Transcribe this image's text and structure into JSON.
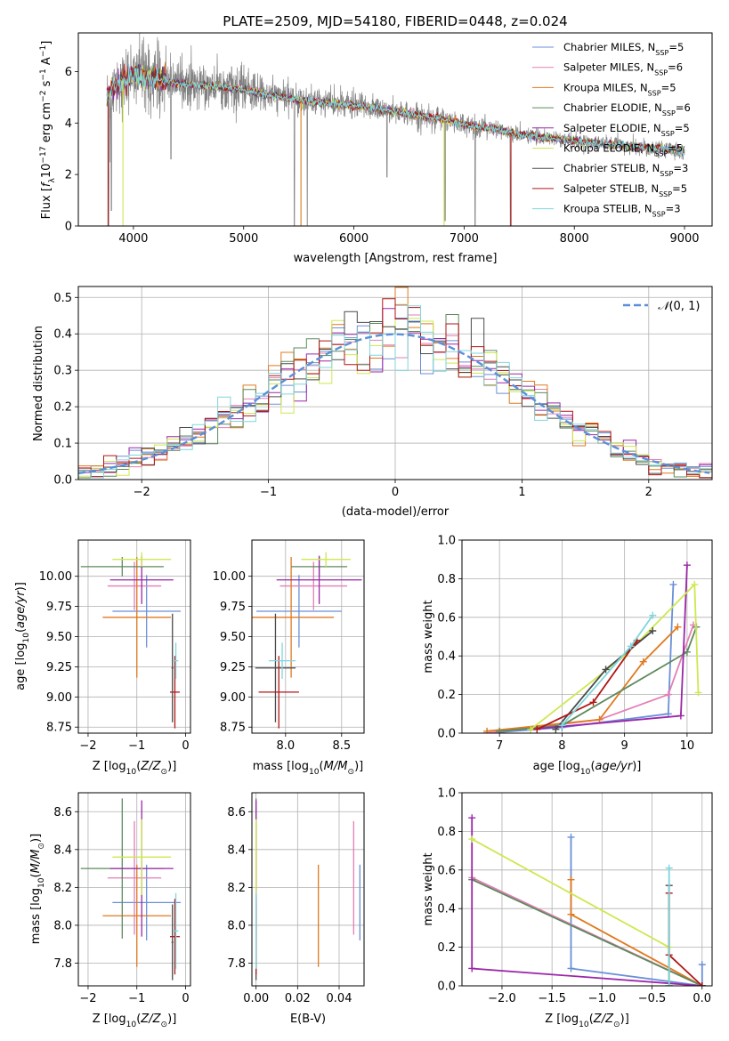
{
  "figure": {
    "title": "PLATE=2509, MJD=54180, FIBERID=0448, z=0.024",
    "palette": {
      "Chabrier MILES": "#6a8fd8",
      "Salpeter MILES": "#e37fb5",
      "Kroupa MILES": "#e07a1f",
      "Chabrier ELODIE": "#5d8a5d",
      "Salpeter ELODIE": "#9b27a8",
      "Kroupa ELODIE": "#cde84f",
      "Chabrier STELIB": "#4a4a4a",
      "Salpeter STELIB": "#b01717",
      "Kroupa STELIB": "#7fd6dc",
      "data": "#808080",
      "normal": "#5b8fd8"
    }
  },
  "chart_data": [
    {
      "type": "line",
      "name": "spectrum",
      "xlabel": "wavelength [Angstrom, rest frame]",
      "ylabel": "Flux [f_λ 10^-17 erg cm^-2 s^-1 A^-1]",
      "xlim": [
        3500,
        9250
      ],
      "ylim": [
        0,
        7.5
      ],
      "xticks": [
        4000,
        5000,
        6000,
        7000,
        8000,
        9000
      ],
      "yticks": [
        0,
        2,
        4,
        6
      ],
      "legend_position": "top-right",
      "legend": [
        {
          "label": "Chabrier MILES, N",
          "sub": "SSP",
          "suffix": "=5"
        },
        {
          "label": "Salpeter MILES, N",
          "sub": "SSP",
          "suffix": "=6"
        },
        {
          "label": "Kroupa MILES, N",
          "sub": "SSP",
          "suffix": "=5"
        },
        {
          "label": "Chabrier ELODIE, N",
          "sub": "SSP",
          "suffix": "=6"
        },
        {
          "label": "Salpeter ELODIE, N",
          "sub": "SSP",
          "suffix": "=5"
        },
        {
          "label": "Kroupa ELODIE, N",
          "sub": "SSP",
          "suffix": "=5"
        },
        {
          "label": "Chabrier STELIB, N",
          "sub": "SSP",
          "suffix": "=3"
        },
        {
          "label": "Salpeter STELIB, N",
          "sub": "SSP",
          "suffix": "=5"
        },
        {
          "label": "Kroupa STELIB, N",
          "sub": "SSP",
          "suffix": "=3"
        }
      ],
      "model_continuum": {
        "x": [
          3760,
          3800,
          3900,
          4000,
          4100,
          4300,
          4500,
          4800,
          5000,
          5200,
          5500,
          5800,
          6000,
          6300,
          6500,
          6800,
          7000,
          7300,
          7500,
          7800,
          8000,
          8300,
          8500,
          8800,
          9000
        ],
        "y": [
          4.9,
          5.4,
          5.6,
          5.9,
          5.8,
          5.6,
          5.5,
          5.4,
          5.3,
          5.1,
          4.9,
          4.75,
          4.7,
          4.5,
          4.35,
          4.15,
          3.95,
          3.75,
          3.55,
          3.4,
          3.3,
          3.2,
          3.1,
          3.0,
          2.9
        ]
      },
      "data_dips": [
        [
          3775,
          0.0
        ],
        [
          3800,
          0.6
        ],
        [
          4340,
          2.6
        ],
        [
          5460,
          0.0
        ],
        [
          5577,
          0.0
        ],
        [
          6300,
          1.9
        ],
        [
          6828,
          0.2
        ],
        [
          7100,
          0.0
        ],
        [
          7420,
          0.0
        ]
      ]
    },
    {
      "type": "step",
      "name": "residuals",
      "xlabel": "(data-model)/error",
      "ylabel": "Normed distribution",
      "xlim": [
        -2.5,
        2.5
      ],
      "ylim": [
        0,
        0.53
      ],
      "xticks": [
        -2,
        -1,
        0,
        1,
        2
      ],
      "yticks": [
        0.0,
        0.1,
        0.2,
        0.3,
        0.4,
        0.5
      ],
      "legend": "𝒩(0,1)",
      "legend_position": "top-right",
      "grid": true,
      "bin_width": 0.1
    },
    {
      "type": "scatter",
      "name": "age-vs-Z",
      "xlabel": "Z [log10(Z/Z⊙)]",
      "ylabel": "age [log10(age/yr)]",
      "xlim": [
        -2.2,
        0.1
      ],
      "ylim": [
        8.7,
        10.3
      ],
      "xticks": [
        -2,
        -1,
        0
      ],
      "yticks": [
        8.75,
        9.0,
        9.25,
        9.5,
        9.75,
        10.0
      ],
      "grid": true,
      "points": [
        {
          "model": "Chabrier MILES",
          "x": -0.8,
          "xerr": 0.7,
          "y": 9.71,
          "yerr": 0.3
        },
        {
          "model": "Salpeter MILES",
          "x": -1.05,
          "xerr": 0.55,
          "y": 9.92,
          "yerr": 0.2
        },
        {
          "model": "Kroupa MILES",
          "x": -1.0,
          "xerr": 0.7,
          "y": 9.66,
          "yerr": 0.5
        },
        {
          "model": "Chabrier ELODIE",
          "x": -1.3,
          "xerr": 0.85,
          "y": 10.08,
          "yerr": 0.08
        },
        {
          "model": "Salpeter ELODIE",
          "x": -0.9,
          "xerr": 0.65,
          "y": 9.97,
          "yerr": 0.2
        },
        {
          "model": "Kroupa ELODIE",
          "x": -0.9,
          "xerr": 0.6,
          "y": 10.14,
          "yerr": 0.06
        },
        {
          "model": "Chabrier STELIB",
          "x": -0.27,
          "xerr": 0.02,
          "y": 9.24,
          "yerr": 0.45
        },
        {
          "model": "Salpeter STELIB",
          "x": -0.22,
          "xerr": 0.1,
          "y": 9.04,
          "yerr": 0.3
        },
        {
          "model": "Kroupa STELIB",
          "x": -0.2,
          "xerr": 0.05,
          "y": 9.3,
          "yerr": 0.15
        }
      ]
    },
    {
      "type": "scatter",
      "name": "age-vs-mass",
      "xlabel": "mass [log10(M/M⊙)]",
      "xlim": [
        7.7,
        8.7
      ],
      "ylim": [
        8.7,
        10.3
      ],
      "xticks": [
        8.0,
        8.5
      ],
      "yticks": [
        8.75,
        9.0,
        9.25,
        9.5,
        9.75,
        10.0
      ],
      "grid": true,
      "points": [
        {
          "model": "Chabrier MILES",
          "x": 8.12,
          "xerr": 0.38,
          "y": 9.71,
          "yerr": 0.3
        },
        {
          "model": "Salpeter MILES",
          "x": 8.25,
          "xerr": 0.3,
          "y": 9.92,
          "yerr": 0.2
        },
        {
          "model": "Kroupa MILES",
          "x": 8.05,
          "xerr": 0.38,
          "y": 9.66,
          "yerr": 0.5
        },
        {
          "model": "Chabrier ELODIE",
          "x": 8.3,
          "xerr": 0.25,
          "y": 10.08,
          "yerr": 0.08
        },
        {
          "model": "Salpeter ELODIE",
          "x": 8.3,
          "xerr": 0.38,
          "y": 9.97,
          "yerr": 0.2
        },
        {
          "model": "Kroupa ELODIE",
          "x": 8.36,
          "xerr": 0.22,
          "y": 10.14,
          "yerr": 0.06
        },
        {
          "model": "Chabrier STELIB",
          "x": 7.91,
          "xerr": 0.18,
          "y": 9.24,
          "yerr": 0.45
        },
        {
          "model": "Salpeter STELIB",
          "x": 7.94,
          "xerr": 0.18,
          "y": 9.04,
          "yerr": 0.3
        },
        {
          "model": "Kroupa STELIB",
          "x": 7.97,
          "xerr": 0.12,
          "y": 9.3,
          "yerr": 0.15
        }
      ]
    },
    {
      "type": "line",
      "name": "weight-vs-age",
      "xlabel": "age [log10(age/yr)]",
      "ylabel": "mass weight",
      "xlim": [
        6.4,
        10.4
      ],
      "ylim": [
        0,
        1.0
      ],
      "xticks": [
        7,
        8,
        9,
        10
      ],
      "yticks": [
        0.0,
        0.2,
        0.4,
        0.6,
        0.8,
        1.0
      ],
      "grid": true,
      "series": [
        {
          "model": "Chabrier MILES",
          "points": [
            [
              6.8,
              0.0
            ],
            [
              8.0,
              0.03
            ],
            [
              9.7,
              0.1
            ],
            [
              9.78,
              0.77
            ]
          ]
        },
        {
          "model": "Salpeter MILES",
          "points": [
            [
              6.8,
              0.0
            ],
            [
              8.6,
              0.07
            ],
            [
              9.7,
              0.2
            ],
            [
              10.1,
              0.56
            ]
          ]
        },
        {
          "model": "Kroupa MILES",
          "points": [
            [
              6.8,
              0.01
            ],
            [
              8.6,
              0.07
            ],
            [
              9.3,
              0.37
            ],
            [
              9.85,
              0.55
            ]
          ]
        },
        {
          "model": "Chabrier ELODIE",
          "points": [
            [
              7.0,
              0.01
            ],
            [
              8.0,
              0.04
            ],
            [
              10.0,
              0.42
            ],
            [
              10.15,
              0.55
            ]
          ]
        },
        {
          "model": "Salpeter ELODIE",
          "points": [
            [
              7.5,
              0.02
            ],
            [
              9.9,
              0.09
            ],
            [
              10.0,
              0.87
            ]
          ]
        },
        {
          "model": "Kroupa ELODIE",
          "points": [
            [
              7.5,
              0.02
            ],
            [
              9.0,
              0.4
            ],
            [
              10.12,
              0.77
            ],
            [
              10.18,
              0.21
            ]
          ]
        },
        {
          "model": "Chabrier STELIB",
          "points": [
            [
              7.9,
              0.02
            ],
            [
              8.7,
              0.33
            ],
            [
              9.45,
              0.53
            ]
          ]
        },
        {
          "model": "Salpeter STELIB",
          "points": [
            [
              7.6,
              0.02
            ],
            [
              8.5,
              0.16
            ],
            [
              9.2,
              0.48
            ]
          ]
        },
        {
          "model": "Kroupa STELIB",
          "points": [
            [
              8.0,
              0.04
            ],
            [
              9.1,
              0.45
            ],
            [
              9.45,
              0.61
            ]
          ]
        }
      ]
    },
    {
      "type": "scatter",
      "name": "mass-vs-Z",
      "xlabel": "Z [log10(Z/Z⊙)]",
      "ylabel": "mass [log10(M/M⊙)]",
      "xlim": [
        -2.2,
        0.1
      ],
      "ylim": [
        7.68,
        8.7
      ],
      "xticks": [
        -2,
        -1,
        0
      ],
      "yticks": [
        7.8,
        8.0,
        8.2,
        8.4,
        8.6
      ],
      "grid": true,
      "points": [
        {
          "model": "Chabrier MILES",
          "x": -0.8,
          "xerr": 0.7,
          "y": 8.12,
          "yerr": 0.2
        },
        {
          "model": "Salpeter MILES",
          "x": -1.05,
          "xerr": 0.55,
          "y": 8.25,
          "yerr": 0.3
        },
        {
          "model": "Kroupa MILES",
          "x": -1.0,
          "xerr": 0.7,
          "y": 8.05,
          "yerr": 0.27
        },
        {
          "model": "Chabrier ELODIE",
          "x": -1.3,
          "xerr": 0.85,
          "y": 8.3,
          "yerr": 0.37
        },
        {
          "model": "Salpeter ELODIE",
          "x": -0.9,
          "xerr": 0.65,
          "y": 8.3,
          "yerr": 0.36
        },
        {
          "model": "Kroupa ELODIE",
          "x": -0.9,
          "xerr": 0.6,
          "y": 8.36,
          "yerr": 0.2
        },
        {
          "model": "Chabrier STELIB",
          "x": -0.27,
          "xerr": 0.02,
          "y": 7.91,
          "yerr": 0.2
        },
        {
          "model": "Salpeter STELIB",
          "x": -0.22,
          "xerr": 0.1,
          "y": 7.94,
          "yerr": 0.2
        },
        {
          "model": "Kroupa STELIB",
          "x": -0.2,
          "xerr": 0.05,
          "y": 7.97,
          "yerr": 0.2
        }
      ]
    },
    {
      "type": "scatter",
      "name": "mass-vs-ebv",
      "xlabel": "E(B-V)",
      "xlim": [
        -0.002,
        0.052
      ],
      "ylim": [
        7.68,
        8.7
      ],
      "xticks": [
        0.0,
        0.02,
        0.04
      ],
      "yticks": [
        7.8,
        8.0,
        8.2,
        8.4,
        8.6
      ],
      "grid": true,
      "points": [
        {
          "model": "Chabrier MILES",
          "x": 0.05,
          "y": 8.12,
          "yerr": 0.2
        },
        {
          "model": "Salpeter MILES",
          "x": 0.047,
          "y": 8.25,
          "yerr": 0.3
        },
        {
          "model": "Kroupa MILES",
          "x": 0.03,
          "y": 8.05,
          "yerr": 0.27
        },
        {
          "model": "Chabrier ELODIE",
          "x": 0.0,
          "y": 8.3,
          "yerr": 0.37
        },
        {
          "model": "Salpeter ELODIE",
          "x": 0.0,
          "y": 8.3,
          "yerr": 0.36
        },
        {
          "model": "Kroupa ELODIE",
          "x": 0.0,
          "y": 8.36,
          "yerr": 0.2
        },
        {
          "model": "Chabrier STELIB",
          "x": 0.0,
          "y": 7.91,
          "yerr": 0.2
        },
        {
          "model": "Salpeter STELIB",
          "x": 0.0,
          "y": 7.94,
          "yerr": 0.2
        },
        {
          "model": "Kroupa STELIB",
          "x": 0.0,
          "y": 7.97,
          "yerr": 0.2
        }
      ]
    },
    {
      "type": "line",
      "name": "weight-vs-Z",
      "xlabel": "Z [log10(Z/Z⊙)]",
      "ylabel": "mass weight",
      "xlim": [
        -2.4,
        0.1
      ],
      "ylim": [
        0,
        1.0
      ],
      "xticks": [
        -2.0,
        -1.5,
        -1.0,
        -0.5,
        0.0
      ],
      "yticks": [
        0.0,
        0.2,
        0.4,
        0.6,
        0.8,
        1.0
      ],
      "grid": true,
      "series": [
        {
          "model": "Chabrier MILES",
          "points": [
            [
              -1.31,
              0.77
            ],
            [
              -1.31,
              0.09
            ],
            [
              0.0,
              0.0
            ],
            [
              0.0,
              0.11
            ]
          ]
        },
        {
          "model": "Salpeter MILES",
          "points": [
            [
              -2.3,
              0.56
            ],
            [
              0.0,
              0.0
            ]
          ]
        },
        {
          "model": "Kroupa MILES",
          "points": [
            [
              -1.31,
              0.55
            ],
            [
              -1.31,
              0.37
            ],
            [
              0.0,
              0.0
            ]
          ]
        },
        {
          "model": "Chabrier ELODIE",
          "points": [
            [
              -2.3,
              0.55
            ],
            [
              0.0,
              0.0
            ]
          ]
        },
        {
          "model": "Salpeter ELODIE",
          "points": [
            [
              -2.3,
              0.87
            ],
            [
              -2.3,
              0.09
            ],
            [
              0.0,
              0.0
            ]
          ]
        },
        {
          "model": "Kroupa ELODIE",
          "points": [
            [
              -2.3,
              0.76
            ],
            [
              -0.33,
              0.2
            ],
            [
              -0.33,
              0.0
            ]
          ]
        },
        {
          "model": "Chabrier STELIB",
          "points": [
            [
              -0.33,
              0.52
            ],
            [
              -0.33,
              0.0
            ]
          ]
        },
        {
          "model": "Salpeter STELIB",
          "points": [
            [
              -0.33,
              0.48
            ],
            [
              -0.33,
              0.16
            ],
            [
              0.0,
              0.0
            ]
          ]
        },
        {
          "model": "Kroupa STELIB",
          "points": [
            [
              -0.33,
              0.61
            ],
            [
              -0.33,
              0.0
            ]
          ]
        }
      ]
    }
  ]
}
